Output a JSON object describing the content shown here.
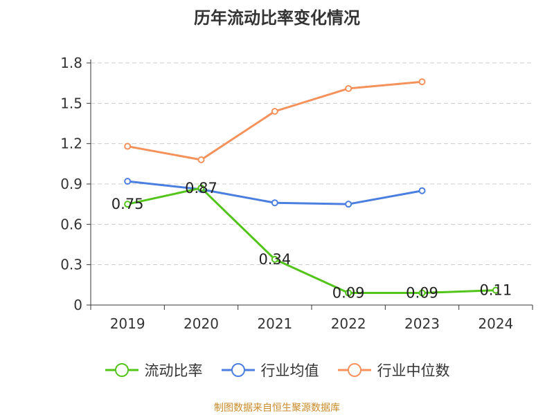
{
  "chart_data": {
    "type": "line",
    "title": "历年流动比率变化情况",
    "categories": [
      "2019",
      "2020",
      "2021",
      "2022",
      "2023",
      "2024"
    ],
    "y_ticks": [
      "0",
      "0.3",
      "0.6",
      "0.9",
      "1.2",
      "1.5",
      "1.8"
    ],
    "ylim": [
      0,
      1.8
    ],
    "grid": true,
    "legend_position": "bottom",
    "series": [
      {
        "name": "流动比率",
        "color": "#52c41a",
        "values": [
          0.75,
          0.87,
          0.34,
          0.09,
          0.09,
          0.11
        ],
        "labels": [
          "0.75",
          "0.87",
          "0.34",
          "0.09",
          "0.09",
          "0.11"
        ]
      },
      {
        "name": "行业均值",
        "color": "#4a7fe0",
        "values": [
          0.92,
          0.86,
          0.76,
          0.75,
          0.85,
          null
        ],
        "labels": []
      },
      {
        "name": "行业中位数",
        "color": "#f5915a",
        "values": [
          1.18,
          1.08,
          1.44,
          1.61,
          1.66,
          null
        ],
        "labels": []
      }
    ]
  },
  "source_note": "制图数据来自恒生聚源数据库"
}
